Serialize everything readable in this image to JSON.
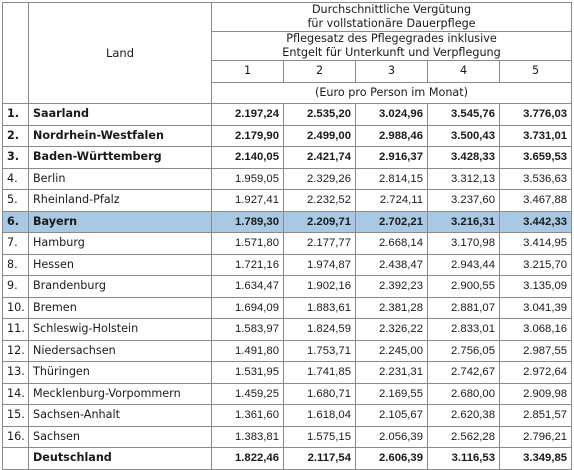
{
  "header": {
    "land_label": "Land",
    "title_line1": "Durchschnittliche Vergütung",
    "title_line2": "für vollstationäre Dauerpflege",
    "subtitle_line1": "Pflegesatz des Pflegegrades inklusive",
    "subtitle_line2": "Entgelt für Unterkunft und Verpflegung",
    "grades": [
      "1",
      "2",
      "3",
      "4",
      "5"
    ],
    "unit": "(Euro pro Person im Monat)"
  },
  "rows": [
    {
      "nr": "1.",
      "land": "Saarland",
      "values": [
        "2.197,24",
        "2.535,20",
        "3.024,96",
        "3.545,76",
        "3.776,03"
      ],
      "style": "bold"
    },
    {
      "nr": "2.",
      "land": "Nordrhein-Westfalen",
      "values": [
        "2.179,90",
        "2.499,00",
        "2.988,46",
        "3.500,43",
        "3.731,01"
      ],
      "style": "bold"
    },
    {
      "nr": "3.",
      "land": "Baden-Württemberg",
      "values": [
        "2.140,05",
        "2.421,74",
        "2.916,37",
        "3.428,33",
        "3.659,53"
      ],
      "style": "bold"
    },
    {
      "nr": "4.",
      "land": "Berlin",
      "values": [
        "1.959,05",
        "2.329,26",
        "2.814,15",
        "3.312,13",
        "3.536,63"
      ],
      "style": "normal"
    },
    {
      "nr": "5.",
      "land": "Rheinland-Pfalz",
      "values": [
        "1.927,41",
        "2.232,52",
        "2.724,11",
        "3.237,60",
        "3.467,88"
      ],
      "style": "normal"
    },
    {
      "nr": "6.",
      "land": "Bayern",
      "values": [
        "1.789,30",
        "2.209,71",
        "2.702,21",
        "3.216,31",
        "3.442,33"
      ],
      "style": "highlight"
    },
    {
      "nr": "7.",
      "land": "Hamburg",
      "values": [
        "1.571,80",
        "2.177,77",
        "2.668,14",
        "3.170,98",
        "3.414,95"
      ],
      "style": "normal"
    },
    {
      "nr": "8.",
      "land": "Hessen",
      "values": [
        "1.721,16",
        "1.974,87",
        "2.438,47",
        "2.943,44",
        "3.215,70"
      ],
      "style": "normal"
    },
    {
      "nr": "9.",
      "land": "Brandenburg",
      "values": [
        "1.634,47",
        "1.902,16",
        "2.392,23",
        "2.900,55",
        "3.135,09"
      ],
      "style": "normal"
    },
    {
      "nr": "10.",
      "land": "Bremen",
      "values": [
        "1.694,09",
        "1.883,61",
        "2.381,28",
        "2.881,07",
        "3.041,39"
      ],
      "style": "normal"
    },
    {
      "nr": "11.",
      "land": "Schleswig-Holstein",
      "values": [
        "1.583,97",
        "1.824,59",
        "2.326,22",
        "2.833,01",
        "3.068,16"
      ],
      "style": "normal"
    },
    {
      "nr": "12.",
      "land": "Niedersachsen",
      "values": [
        "1.491,80",
        "1.753,71",
        "2.245,00",
        "2.756,05",
        "2.987,55"
      ],
      "style": "normal"
    },
    {
      "nr": "13.",
      "land": "Thüringen",
      "values": [
        "1.531,95",
        "1.741,85",
        "2.231,31",
        "2.742,67",
        "2.972,64"
      ],
      "style": "normal"
    },
    {
      "nr": "14.",
      "land": "Mecklenburg-Vorpommern",
      "values": [
        "1.459,25",
        "1.680,71",
        "2.169,55",
        "2.680,00",
        "2.909,98"
      ],
      "style": "normal"
    },
    {
      "nr": "15.",
      "land": "Sachsen-Anhalt",
      "values": [
        "1.361,60",
        "1.618,04",
        "2.105,67",
        "2.620,38",
        "2.851,57"
      ],
      "style": "normal"
    },
    {
      "nr": "16.",
      "land": "Sachsen",
      "values": [
        "1.383,81",
        "1.575,15",
        "2.056,39",
        "2.562,28",
        "2.796,21"
      ],
      "style": "normal"
    },
    {
      "nr": "",
      "land": "Deutschland",
      "values": [
        "1.822,46",
        "2.117,54",
        "2.606,39",
        "3.116,53",
        "3.349,85"
      ],
      "style": "total"
    }
  ],
  "colors": {
    "highlight_row": "#a9c8e3",
    "grid": "#8a8a8a"
  }
}
